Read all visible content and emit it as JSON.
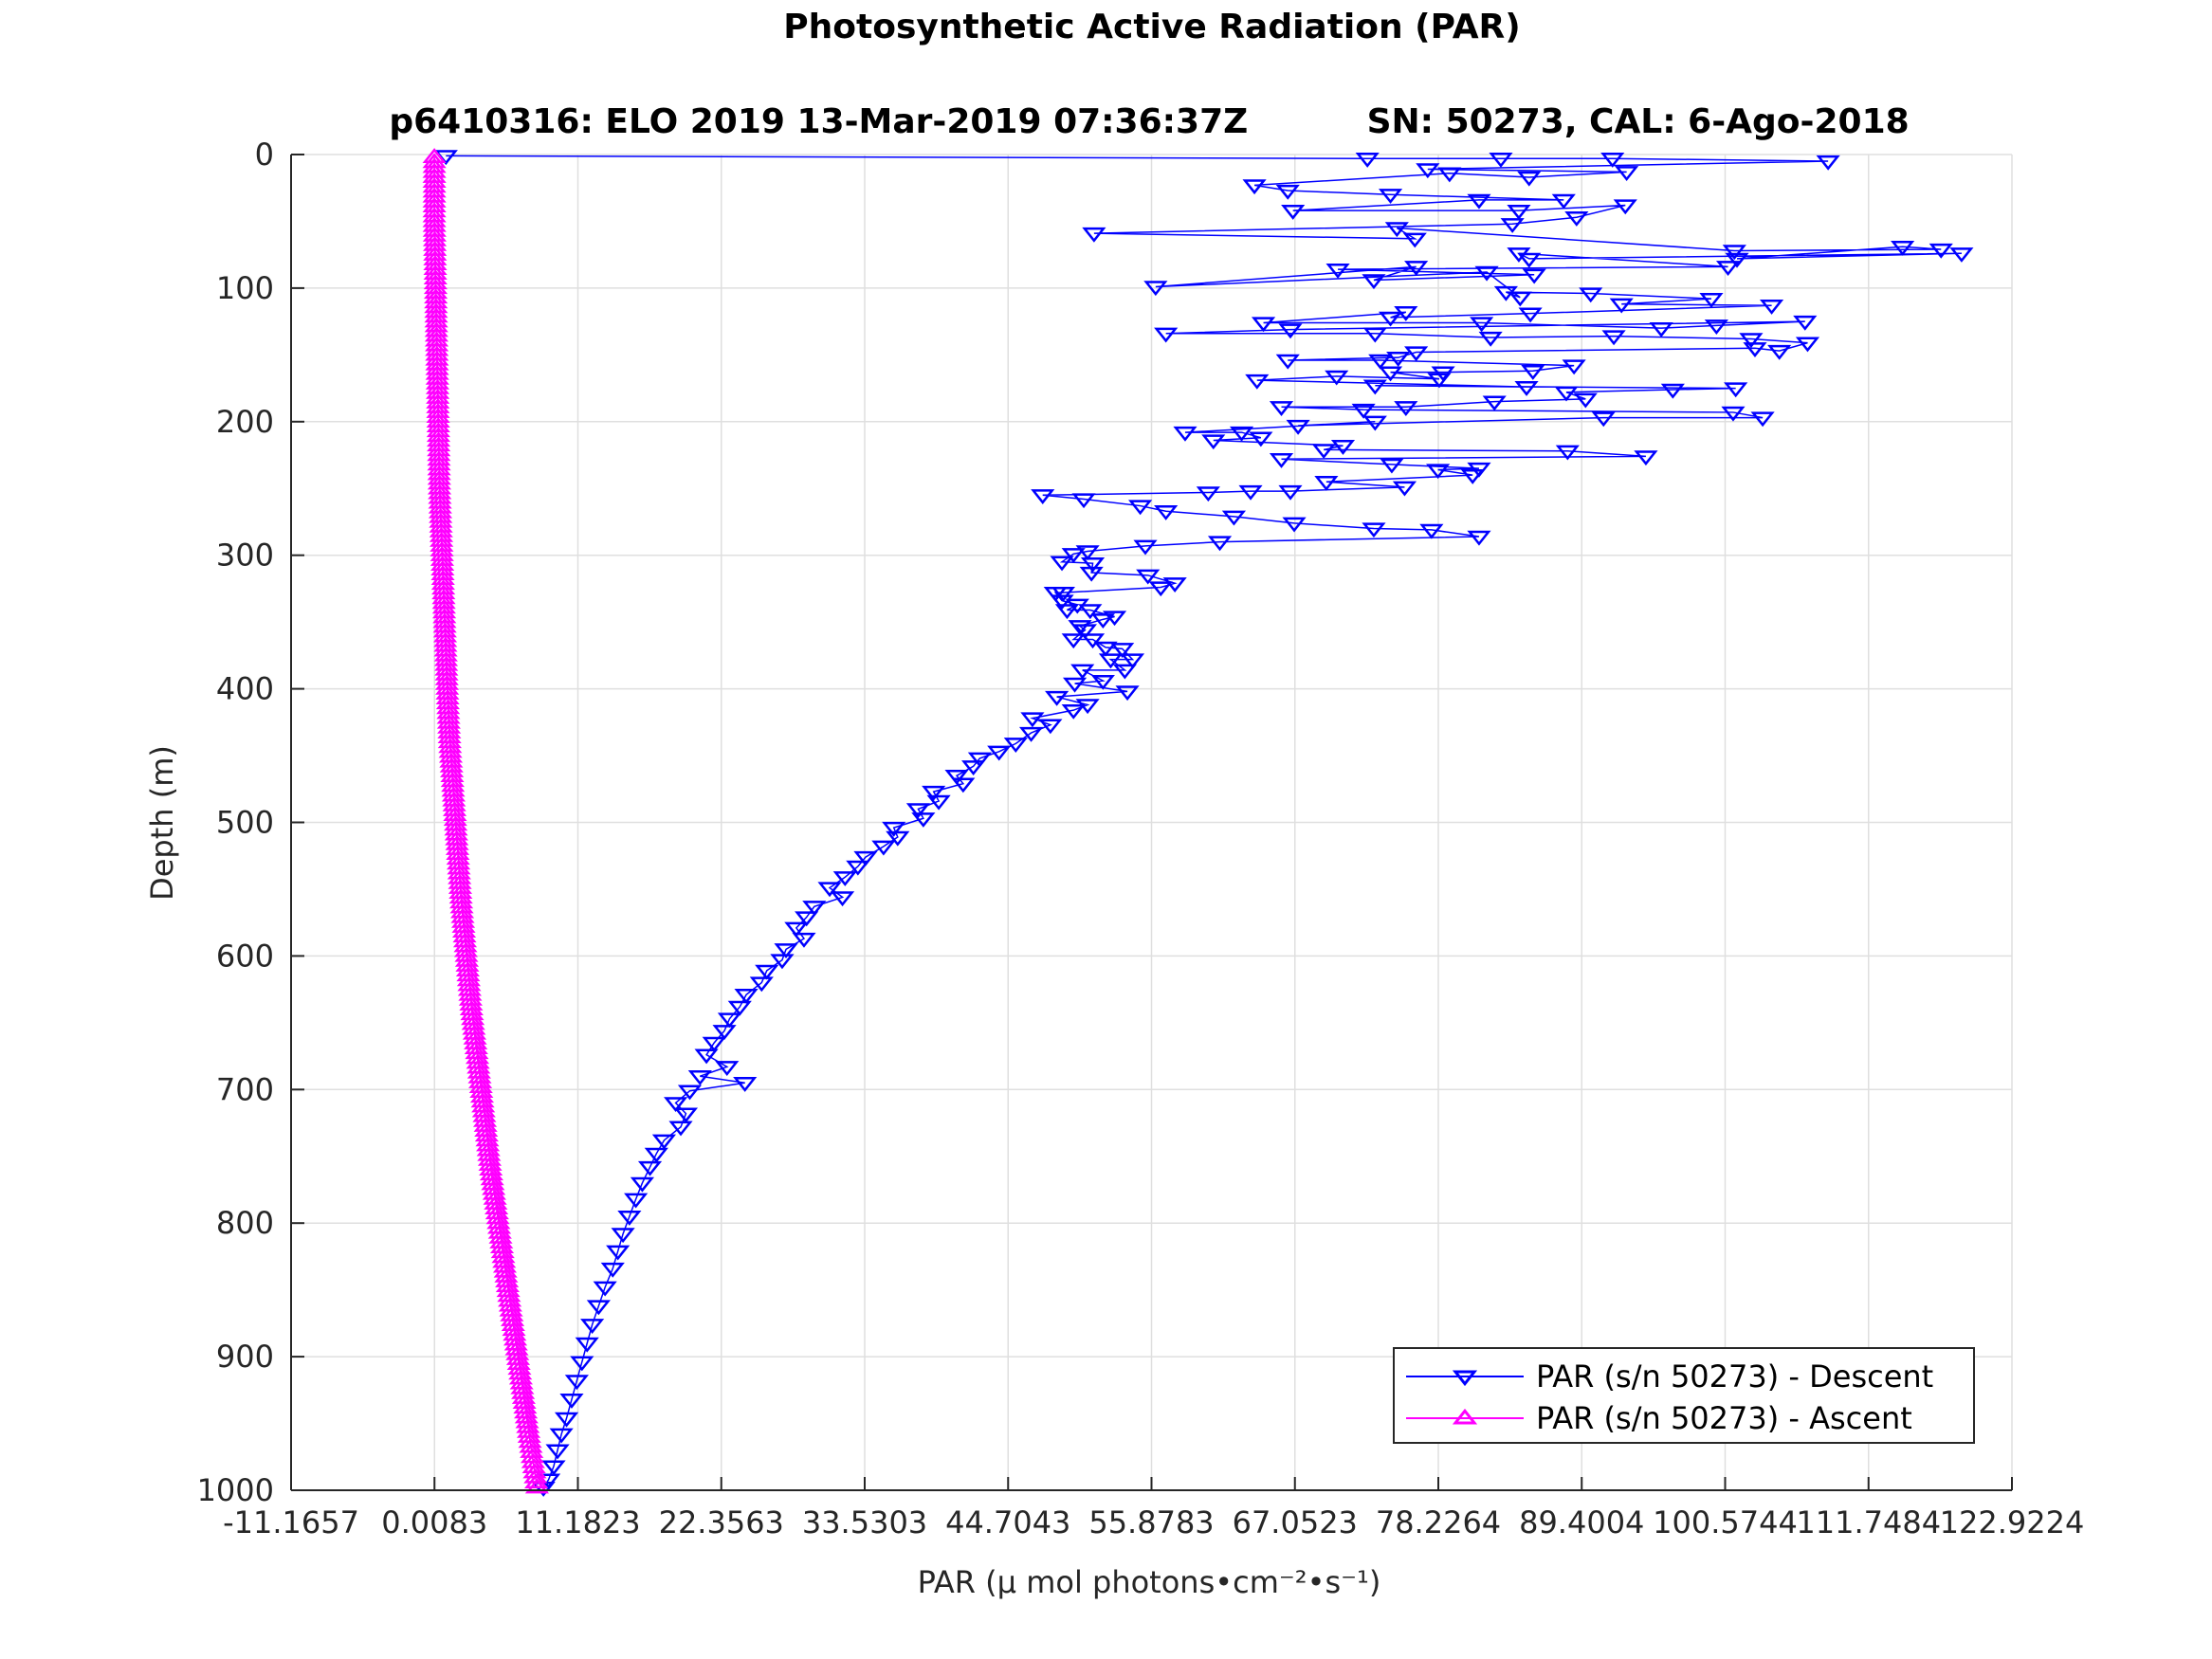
{
  "chart_data": {
    "type": "line",
    "title": "Photosynthetic Active Radiation (PAR)",
    "subtitle": "p6410316: ELO 2019 13-Mar-2019 07:36:37Z          SN: 50273, CAL: 6-Ago-2018",
    "xlabel": "PAR (μ mol photons•cm⁻²•s⁻¹)",
    "ylabel": "Depth (m)",
    "xlim": [
      -11.1657,
      122.9224
    ],
    "ylim": [
      0,
      1000
    ],
    "y_reversed": true,
    "grid": true,
    "legend_position": "bottom-right",
    "x_ticks": [
      "-11.1657",
      "0.0083",
      "11.1823",
      "22.3563",
      "33.5303",
      "44.7043",
      "55.8783",
      "67.0523",
      "78.2264",
      "89.4004",
      "100.5744",
      "111.7484",
      "122.9224"
    ],
    "x_tick_values": [
      -11.1657,
      0.0083,
      11.1823,
      22.3563,
      33.5303,
      44.7043,
      55.8783,
      67.0523,
      78.2264,
      89.4004,
      100.5744,
      111.7484,
      122.9224
    ],
    "y_ticks": [
      "0",
      "100",
      "200",
      "300",
      "400",
      "500",
      "600",
      "700",
      "800",
      "900",
      "1000"
    ],
    "y_tick_values": [
      0,
      100,
      200,
      300,
      400,
      500,
      600,
      700,
      800,
      900,
      1000
    ],
    "series": [
      {
        "name": "PAR (s/n 50273) - Descent",
        "color": "#0000ff",
        "marker": "triangle-down",
        "x": [
          0.9,
          72.7,
          83.1,
          91.8,
          108.6,
          77.4,
          92.9,
          85.3,
          79.1,
          63.9,
          66.5,
          74.5,
          88.0,
          81.4,
          66.9,
          84.5,
          92.8,
          89.0,
          84.0,
          51.4,
          76.4,
          75.0,
          101.3,
          117.4,
          114.4,
          101.5,
          119.0,
          85.3,
          84.5,
          100.8,
          70.4,
          85.7,
          73.2,
          76.5,
          56.2,
          82.0,
          84.6,
          83.5,
          90.1,
          99.5,
          92.5,
          104.2,
          85.4,
          74.5,
          75.7,
          64.6,
          81.6,
          95.6,
          99.9,
          106.8,
          66.7,
          57.0,
          73.3,
          82.3,
          91.9,
          102.6,
          107.0,
          104.8,
          102.9,
          76.5,
          75.1,
          66.5,
          73.7,
          88.8,
          85.6,
          78.6,
          74.5,
          78.3,
          70.3,
          64.1,
          85.1,
          73.3,
          101.4,
          96.5,
          88.2,
          89.7,
          82.6,
          75.7,
          66.0,
          72.4,
          101.2,
          103.5,
          91.1,
          67.3,
          73.3,
          58.5,
          62.9,
          64.4,
          60.7,
          70.8,
          69.3,
          88.3,
          94.4,
          66.0,
          74.6,
          81.4,
          78.2,
          80.9,
          69.5,
          75.6,
          66.7,
          63.6,
          60.3,
          47.4,
          50.6,
          55.0,
          57.0,
          62.3,
          67.0,
          73.2,
          77.7,
          81.4,
          61.2,
          55.4,
          50.9,
          49.8,
          48.9,
          51.3,
          51.2,
          55.6,
          57.7,
          56.6,
          49.0,
          48.4,
          48.9,
          50.1,
          49.3,
          51.1,
          53.0,
          52.1,
          50.3,
          50.7,
          49.8,
          51.3,
          52.3,
          53.6,
          54.4,
          52.7,
          53.8,
          50.5,
          52.1,
          49.9,
          54.0,
          48.5,
          50.9,
          49.8,
          46.6,
          48.0,
          46.5,
          45.3,
          44.0,
          42.5,
          42.0,
          40.7,
          41.2,
          38.9,
          39.3,
          37.7,
          38.1,
          35.8,
          36.1,
          35.0,
          33.6,
          33.0,
          32.0,
          30.8,
          31.8,
          29.6,
          29.0,
          28.2,
          28.8,
          27.4,
          27.1,
          25.9,
          25.5,
          24.3,
          23.8,
          23.0,
          22.6,
          21.8,
          21.2,
          22.8,
          20.7,
          24.2,
          19.9,
          18.8,
          19.6,
          19.2,
          17.9,
          17.3,
          16.8,
          16.2,
          15.7,
          15.2,
          14.7,
          14.3,
          13.9,
          13.3,
          12.8,
          12.3,
          11.9,
          11.5,
          11.1,
          10.7,
          10.3,
          9.9,
          9.6,
          9.3,
          8.9,
          8.5
        ],
        "y": [
          1,
          3,
          3,
          3,
          5,
          11,
          13,
          17,
          14,
          23,
          27,
          30,
          34,
          34,
          42,
          42,
          38,
          47,
          52,
          59,
          63,
          55,
          72,
          71,
          69,
          78,
          74,
          78,
          74,
          84,
          86,
          90,
          94,
          84,
          99,
          88,
          107,
          103,
          104,
          108,
          112,
          113,
          119,
          122,
          118,
          126,
          126,
          130,
          128,
          125,
          131,
          134,
          134,
          137,
          136,
          138,
          141,
          147,
          145,
          148,
          152,
          154,
          154,
          158,
          162,
          163,
          163,
          168,
          166,
          169,
          174,
          173,
          175,
          176,
          178,
          183,
          185,
          189,
          189,
          191,
          193,
          197,
          197,
          203,
          200,
          208,
          208,
          212,
          214,
          218,
          221,
          222,
          226,
          228,
          232,
          235,
          236,
          240,
          245,
          249,
          252,
          252,
          253,
          255,
          258,
          263,
          267,
          271,
          276,
          280,
          281,
          286,
          290,
          293,
          297,
          299,
          305,
          306,
          313,
          315,
          321,
          324,
          328,
          328,
          334,
          337,
          341,
          341,
          346,
          348,
          353,
          356,
          363,
          363,
          369,
          370,
          378,
          378,
          386,
          386,
          394,
          396,
          402,
          406,
          412,
          416,
          422,
          427,
          433,
          441,
          447,
          452,
          458,
          465,
          471,
          477,
          484,
          490,
          497,
          504,
          511,
          518,
          526,
          533,
          541,
          549,
          556,
          563,
          571,
          579,
          587,
          595,
          603,
          611,
          620,
          629,
          638,
          647,
          656,
          665,
          674,
          683,
          690,
          695,
          701,
          710,
          718,
          728,
          738,
          748,
          758,
          770,
          782,
          795,
          808,
          821,
          834,
          848,
          862,
          876,
          890,
          904,
          918,
          932,
          946,
          958,
          970,
          982,
          992,
          998
        ]
      },
      {
        "name": "PAR (s/n 50273) - Ascent",
        "color": "#ff00ff",
        "marker": "triangle-up",
        "x": [
          8.0,
          7.4,
          6.8,
          6.2,
          5.6,
          5.0,
          4.4,
          3.9,
          3.4,
          2.9,
          2.5,
          2.1,
          1.8,
          1.5,
          1.2,
          1.0,
          0.8,
          0.6,
          0.4,
          0.3,
          0.2,
          0.1,
          0.0,
          0.0
        ],
        "y": [
          998,
          960,
          920,
          880,
          840,
          800,
          760,
          720,
          680,
          640,
          600,
          560,
          520,
          480,
          440,
          400,
          350,
          300,
          250,
          200,
          150,
          100,
          50,
          2
        ]
      }
    ]
  }
}
